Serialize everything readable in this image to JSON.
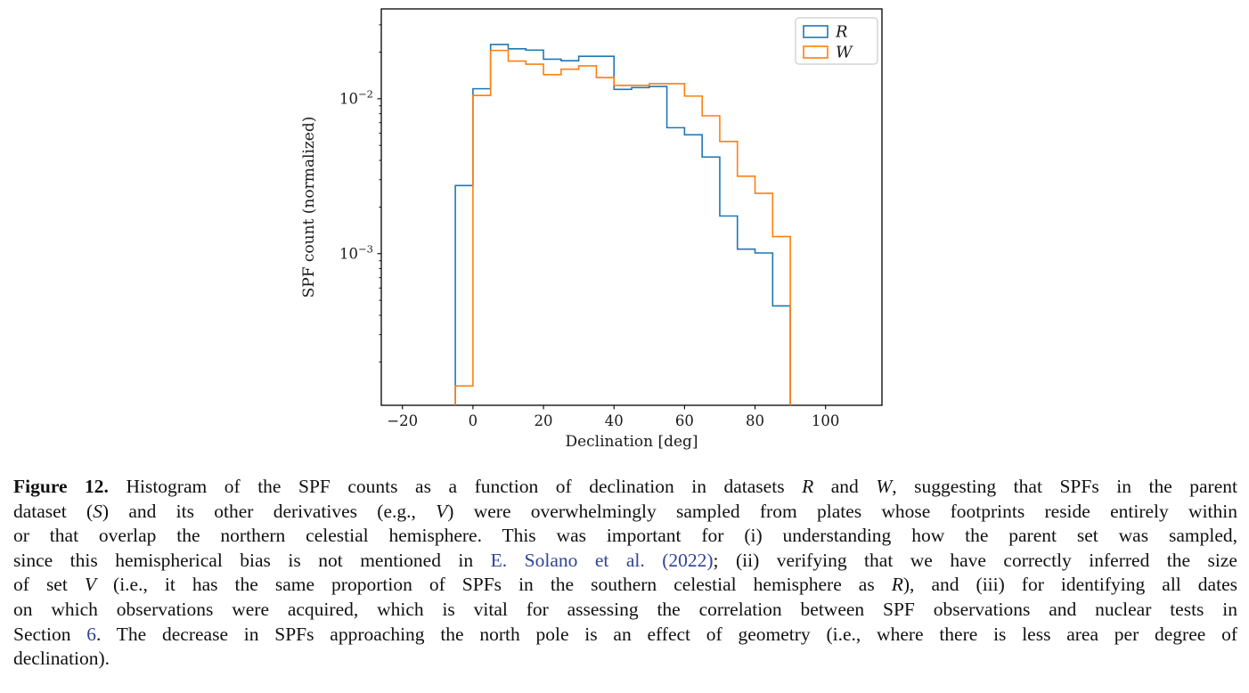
{
  "chart_data": {
    "type": "step-histogram",
    "title": "",
    "xlabel": "Declination [deg]",
    "ylabel": "SPF count (normalized)",
    "yscale": "log",
    "xlim": [
      -26,
      116
    ],
    "ylim": [
      0.000105,
      0.038
    ],
    "xticks": [
      -20,
      0,
      20,
      40,
      60,
      80,
      100
    ],
    "yticks": [
      {
        "value": 0.01,
        "base": "10",
        "exp": "−2"
      },
      {
        "value": 0.001,
        "base": "10",
        "exp": "−3"
      }
    ],
    "grid": false,
    "legend": {
      "position": "upper-right",
      "entries": [
        "R",
        "W"
      ]
    },
    "bin_edges": [
      -5,
      0,
      5,
      10,
      15,
      20,
      25,
      30,
      35,
      40,
      45,
      50,
      55,
      60,
      65,
      70,
      75,
      80,
      85,
      90
    ],
    "series": [
      {
        "name": "R",
        "color": "#1f77b4",
        "values": [
          0.00275,
          0.0116,
          0.0224,
          0.021,
          0.0206,
          0.018,
          0.0176,
          0.0188,
          0.0188,
          0.0115,
          0.0118,
          0.012,
          0.0065,
          0.00585,
          0.0042,
          0.00175,
          0.00107,
          0.00101,
          0.00046
        ]
      },
      {
        "name": "W",
        "color": "#ff7f0e",
        "values": [
          0.00014,
          0.0105,
          0.0205,
          0.0175,
          0.0167,
          0.0143,
          0.0155,
          0.0163,
          0.0137,
          0.0122,
          0.0122,
          0.0125,
          0.0125,
          0.0104,
          0.00776,
          0.0053,
          0.00316,
          0.00245,
          0.00129
        ]
      }
    ]
  },
  "figure": {
    "link_color": "#2F4496",
    "caption_lines": [
      [
        {
          "t": "Figure 12.",
          "s": "b"
        },
        {
          "t": " Histogram of the SPF counts as a function of declination in datasets ",
          "s": "n"
        },
        {
          "t": "R",
          "s": "i"
        },
        {
          "t": " and ",
          "s": "n"
        },
        {
          "t": "W",
          "s": "i"
        },
        {
          "t": ", suggesting that SPFs in the parent",
          "s": "n"
        }
      ],
      [
        {
          "t": "dataset (",
          "s": "n"
        },
        {
          "t": "S",
          "s": "i"
        },
        {
          "t": ") and its other derivatives (e.g., ",
          "s": "n"
        },
        {
          "t": "V",
          "s": "i"
        },
        {
          "t": ") were overwhelmingly sampled from plates whose footprints reside entirely within",
          "s": "n"
        }
      ],
      [
        {
          "t": "or that overlap the northern celestial hemisphere. This was important for (i) understanding how the parent set was sampled,",
          "s": "n"
        }
      ],
      [
        {
          "t": "since this hemispherical bias is not mentioned in ",
          "s": "n"
        },
        {
          "t": "E. Solano et al. (2022)",
          "s": "l"
        },
        {
          "t": "; (ii) verifying that we have correctly inferred the size",
          "s": "n"
        }
      ],
      [
        {
          "t": "of set ",
          "s": "n"
        },
        {
          "t": "V",
          "s": "i"
        },
        {
          "t": " (i.e., it has the same proportion of SPFs in the southern celestial hemisphere as ",
          "s": "n"
        },
        {
          "t": "R",
          "s": "i"
        },
        {
          "t": "), and (iii) for identifying all dates",
          "s": "n"
        }
      ],
      [
        {
          "t": "on which observations were acquired, which is vital for assessing the correlation between SPF observations and nuclear tests in",
          "s": "n"
        }
      ],
      [
        {
          "t": "Section ",
          "s": "n"
        },
        {
          "t": "6",
          "s": "l"
        },
        {
          "t": ". The decrease in SPFs approaching the north pole is an effect of geometry (i.e., where there is less area per degree of",
          "s": "n"
        }
      ],
      [
        {
          "t": "declination).",
          "s": "n"
        }
      ]
    ]
  }
}
